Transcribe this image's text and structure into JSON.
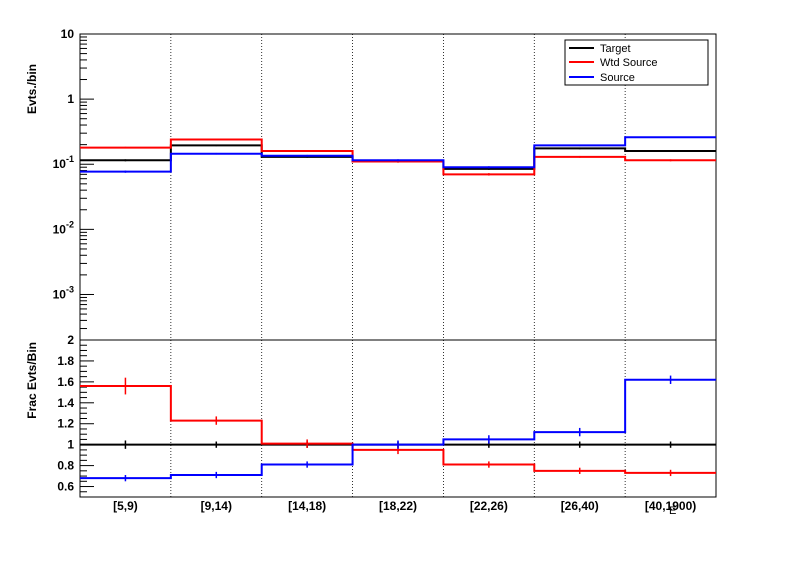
{
  "chart_data": [
    {
      "type": "step",
      "ylabel": "Evts./bin",
      "yscale": "log",
      "ylim": [
        0.0002,
        10
      ],
      "y_ticks": [
        {
          "value": 10,
          "base": "10",
          "exp": ""
        },
        {
          "value": 1,
          "base": "1",
          "exp": ""
        },
        {
          "value": 0.1,
          "base": "10",
          "exp": "-1"
        },
        {
          "value": 0.01,
          "base": "10",
          "exp": "-2"
        },
        {
          "value": 0.001,
          "base": "10",
          "exp": "-3"
        }
      ],
      "categories": [
        "[5,9)",
        "[9,14)",
        "[14,18)",
        "[18,22)",
        "[22,26)",
        "[26,40)",
        "[40,1900)"
      ],
      "legend_position": "top-right",
      "series": [
        {
          "name": "Target",
          "color": "#000000",
          "values": [
            0.115,
            0.195,
            0.13,
            0.11,
            0.085,
            0.175,
            0.16
          ],
          "errors": [
            0.004,
            0.005,
            0.004,
            0.004,
            0.003,
            0.005,
            0.005
          ]
        },
        {
          "name": "Wtd Source",
          "color": "#ff0000",
          "values": [
            0.18,
            0.24,
            0.16,
            0.11,
            0.07,
            0.13,
            0.115
          ],
          "errors": [
            0.005,
            0.006,
            0.005,
            0.004,
            0.003,
            0.004,
            0.004
          ]
        },
        {
          "name": "Source",
          "color": "#0000ff",
          "values": [
            0.077,
            0.145,
            0.135,
            0.115,
            0.09,
            0.195,
            0.26
          ],
          "errors": [
            0.003,
            0.004,
            0.004,
            0.004,
            0.003,
            0.005,
            0.006
          ]
        }
      ]
    },
    {
      "type": "step",
      "ylabel": "Frac Evts/Bin",
      "ylim": [
        0.5,
        2.0
      ],
      "y_ticks": [
        0.6,
        0.8,
        1,
        1.2,
        1.4,
        1.6,
        1.8,
        2
      ],
      "categories": [
        "[5,9)",
        "[9,14)",
        "[14,18)",
        "[18,22)",
        "[22,26)",
        "[26,40)",
        "[40,1900)"
      ],
      "xlabel": "E",
      "series": [
        {
          "name": "Target",
          "color": "#000000",
          "values": [
            1,
            1,
            1,
            1,
            1,
            1,
            1
          ],
          "errors": [
            0.04,
            0.03,
            0.03,
            0.03,
            0.03,
            0.03,
            0.03
          ]
        },
        {
          "name": "Wtd Source",
          "color": "#ff0000",
          "values": [
            1.56,
            1.23,
            1.01,
            0.95,
            0.81,
            0.75,
            0.73
          ],
          "errors": [
            0.08,
            0.04,
            0.04,
            0.04,
            0.03,
            0.03,
            0.03
          ]
        },
        {
          "name": "Source",
          "color": "#0000ff",
          "values": [
            0.68,
            0.71,
            0.81,
            1.0,
            1.05,
            1.12,
            1.62
          ],
          "errors": [
            0.03,
            0.03,
            0.03,
            0.04,
            0.04,
            0.04,
            0.04
          ]
        }
      ]
    }
  ]
}
